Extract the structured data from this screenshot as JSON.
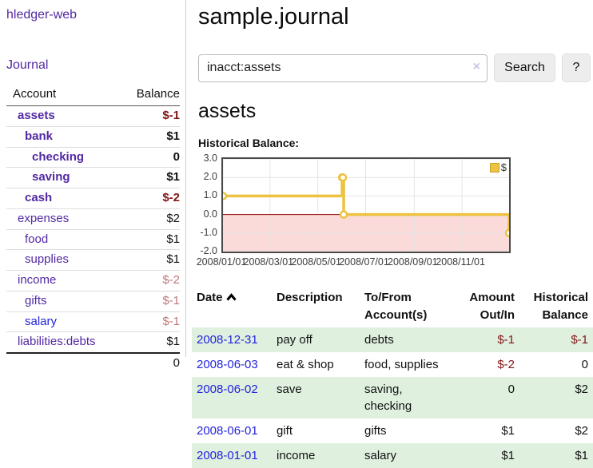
{
  "colors": {
    "brand_purple": "#5229a3",
    "link_blue": "#2323dd",
    "negative": "#801515",
    "negative_soft": "#c17878",
    "row_stripe": "#dff0df",
    "chart_series": "#edc240",
    "chart_negative_region": "#fbdada",
    "chart_zero_line": "#8b0000"
  },
  "sidebar": {
    "brand": "hledger-web",
    "nav": {
      "journal": "Journal"
    },
    "account_header": "Account",
    "balance_header": "Balance",
    "accounts": [
      {
        "name": "assets",
        "balance": "$-1",
        "depth": 1,
        "bold": true,
        "balance_negative": "strong",
        "link_state": "visited"
      },
      {
        "name": "bank",
        "balance": "$1",
        "depth": 2,
        "bold": true,
        "balance_negative": null,
        "link_state": "visited"
      },
      {
        "name": "checking",
        "balance": "0",
        "depth": 3,
        "bold": true,
        "balance_negative": null,
        "link_state": "visited"
      },
      {
        "name": "saving",
        "balance": "$1",
        "depth": 3,
        "bold": true,
        "balance_negative": null,
        "link_state": "visited"
      },
      {
        "name": "cash",
        "balance": "$-2",
        "depth": 2,
        "bold": true,
        "balance_negative": "strong",
        "link_state": "visited"
      },
      {
        "name": "expenses",
        "balance": "$2",
        "depth": 1,
        "bold": false,
        "balance_negative": null,
        "link_state": "visited"
      },
      {
        "name": "food",
        "balance": "$1",
        "depth": 2,
        "bold": false,
        "balance_negative": null,
        "link_state": "visited"
      },
      {
        "name": "supplies",
        "balance": "$1",
        "depth": 2,
        "bold": false,
        "balance_negative": null,
        "link_state": "visited"
      },
      {
        "name": "income",
        "balance": "$-2",
        "depth": 1,
        "bold": false,
        "balance_negative": "soft",
        "link_state": "visited"
      },
      {
        "name": "gifts",
        "balance": "$-1",
        "depth": 2,
        "bold": false,
        "balance_negative": "soft",
        "link_state": "visited"
      },
      {
        "name": "salary",
        "balance": "$-1",
        "depth": 2,
        "bold": false,
        "balance_negative": "soft",
        "link_state": "unvisited"
      },
      {
        "name": "liabilities:debts",
        "balance": "$1",
        "depth": 1,
        "bold": false,
        "balance_negative": null,
        "link_state": "visited"
      }
    ],
    "total": "0"
  },
  "header": {
    "title": "sample.journal"
  },
  "search": {
    "value": "inacct:assets",
    "clear_label": "×",
    "search_button": "Search",
    "help_button": "?"
  },
  "account_page": {
    "heading": "assets",
    "chart_label": "Historical Balance:"
  },
  "chart_data": {
    "type": "line",
    "step": true,
    "title": "Historical Balance",
    "legend_position": "top-right",
    "series": [
      {
        "name": "$",
        "color": "#edc240",
        "points": [
          [
            "2008-01-01",
            1
          ],
          [
            "2008-06-01",
            2
          ],
          [
            "2008-06-02",
            2
          ],
          [
            "2008-06-03",
            0
          ],
          [
            "2008-12-31",
            -1
          ]
        ]
      }
    ],
    "x_range": [
      "2008-01-01",
      "2008-12-31"
    ],
    "x_ticks": [
      "2008/01/01",
      "2008/03/01",
      "2008/05/01",
      "2008/07/01",
      "2008/09/01",
      "2008/11/01"
    ],
    "y_ticks": [
      "3.0",
      "2.0",
      "1.0",
      "0.0",
      "-1.0",
      "-2.0"
    ],
    "y_range": [
      -2,
      3
    ],
    "grid": true
  },
  "register": {
    "columns": [
      "Date",
      "Description",
      "To/From Account(s)",
      "Amount Out/In",
      "Historical Balance"
    ],
    "rows": [
      {
        "date": "2008-12-31",
        "description": "pay off",
        "accounts": "debts",
        "amount": "$-1",
        "amount_negative": true,
        "balance": "$-1",
        "balance_negative": true
      },
      {
        "date": "2008-06-03",
        "description": "eat & shop",
        "accounts": "food, supplies",
        "amount": "$-2",
        "amount_negative": true,
        "balance": "0",
        "balance_negative": false
      },
      {
        "date": "2008-06-02",
        "description": "save",
        "accounts": "saving, checking",
        "amount": "0",
        "amount_negative": false,
        "balance": "$2",
        "balance_negative": false
      },
      {
        "date": "2008-06-01",
        "description": "gift",
        "accounts": "gifts",
        "amount": "$1",
        "amount_negative": false,
        "balance": "$2",
        "balance_negative": false
      },
      {
        "date": "2008-01-01",
        "description": "income",
        "accounts": "salary",
        "amount": "$1",
        "amount_negative": false,
        "balance": "$1",
        "balance_negative": false
      }
    ]
  }
}
